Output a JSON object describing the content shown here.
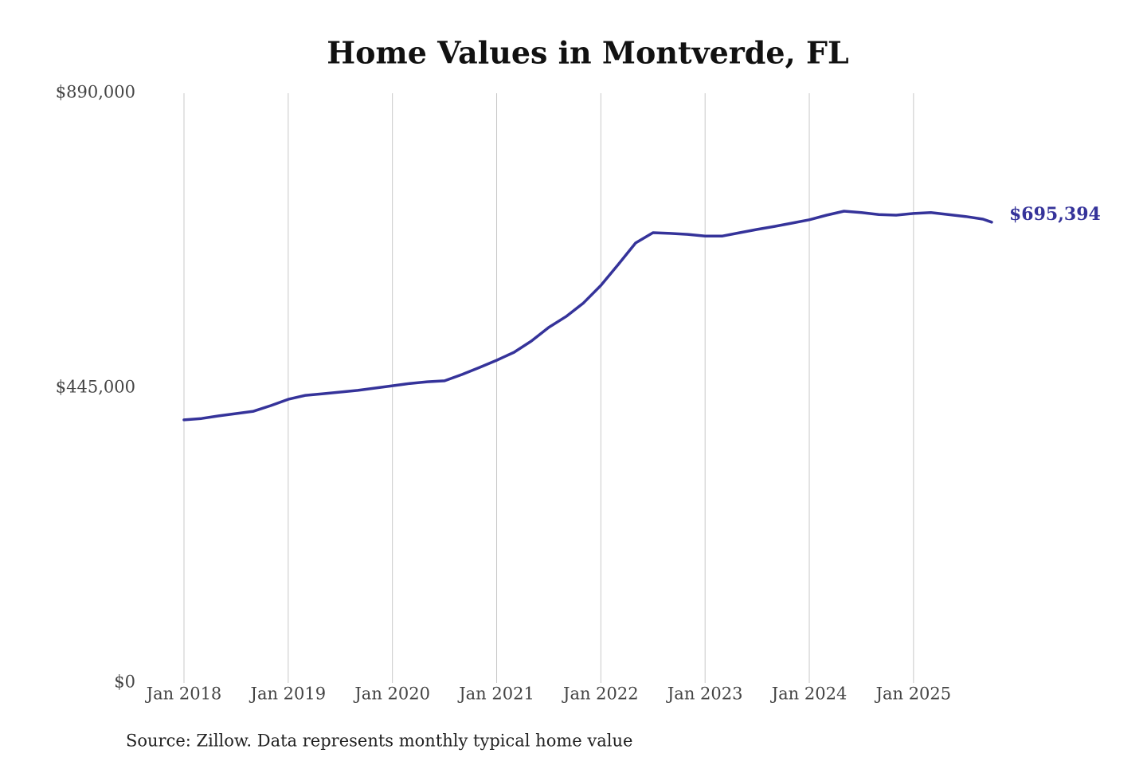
{
  "chart_data": {
    "type": "line",
    "title": "Home Values in Montverde, FL",
    "source": "Source: Zillow. Data represents monthly typical home value",
    "x": [
      "2018-01",
      "2018-03",
      "2018-05",
      "2018-07",
      "2018-09",
      "2018-11",
      "2019-01",
      "2019-03",
      "2019-05",
      "2019-07",
      "2019-09",
      "2019-11",
      "2020-01",
      "2020-03",
      "2020-05",
      "2020-07",
      "2020-09",
      "2020-11",
      "2021-01",
      "2021-03",
      "2021-05",
      "2021-07",
      "2021-09",
      "2021-11",
      "2022-01",
      "2022-03",
      "2022-05",
      "2022-07",
      "2022-09",
      "2022-11",
      "2023-01",
      "2023-03",
      "2023-05",
      "2023-07",
      "2023-09",
      "2023-11",
      "2024-01",
      "2024-03",
      "2024-05",
      "2024-07",
      "2024-09",
      "2024-11",
      "2025-01",
      "2025-03",
      "2025-05",
      "2025-07",
      "2025-09",
      "2025-10"
    ],
    "series": [
      {
        "name": "Typical home value",
        "color": "#35339a",
        "values": [
          397000,
          399000,
          403000,
          406500,
          410000,
          418500,
          428000,
          434000,
          436500,
          439000,
          441500,
          445000,
          448500,
          452000,
          454500,
          456000,
          465500,
          476000,
          487000,
          499000,
          516000,
          536500,
          553000,
          573500,
          600000,
          631500,
          664000,
          679500,
          678500,
          677000,
          674500,
          674500,
          679500,
          684500,
          689000,
          694000,
          699000,
          706000,
          712000,
          710000,
          707000,
          706000,
          708500,
          710000,
          707000,
          704000,
          700000,
          695394
        ],
        "value_labels": [
          null,
          null,
          null,
          null,
          null,
          null,
          null,
          null,
          null,
          null,
          null,
          null,
          null,
          null,
          null,
          null,
          null,
          null,
          null,
          null,
          null,
          null,
          null,
          null,
          null,
          null,
          null,
          null,
          null,
          null,
          null,
          null,
          null,
          null,
          null,
          null,
          null,
          null,
          null,
          null,
          null,
          null,
          null,
          null,
          null,
          null,
          null,
          "$695,394"
        ]
      }
    ],
    "xticks": [
      {
        "value": "2018-01",
        "label": "Jan 2018"
      },
      {
        "value": "2019-01",
        "label": "Jan 2019"
      },
      {
        "value": "2020-01",
        "label": "Jan 2020"
      },
      {
        "value": "2021-01",
        "label": "Jan 2021"
      },
      {
        "value": "2022-01",
        "label": "Jan 2022"
      },
      {
        "value": "2023-01",
        "label": "Jan 2023"
      },
      {
        "value": "2024-01",
        "label": "Jan 2024"
      },
      {
        "value": "2025-01",
        "label": "Jan 2025"
      }
    ],
    "xlim": [
      "2018-01",
      "2025-10"
    ],
    "ylim": [
      0,
      890000
    ],
    "yticks": [
      {
        "value": 0,
        "label": "$0"
      },
      {
        "value": 445000,
        "label": "$445,000"
      },
      {
        "value": 890000,
        "label": "$890,000"
      }
    ],
    "grid": "x"
  }
}
